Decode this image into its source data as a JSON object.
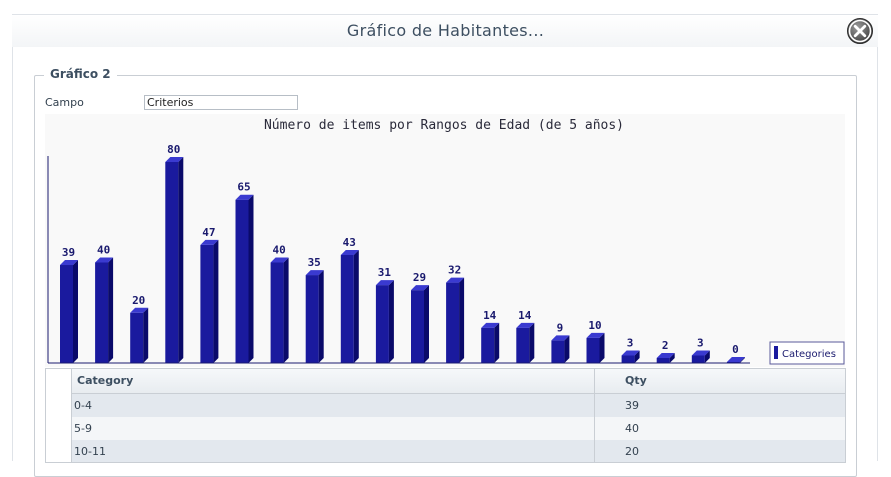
{
  "dialog": {
    "title": "Gráfico de Habitantes...",
    "close_icon": "close-icon"
  },
  "fieldset": {
    "legend": "Gráfico 2"
  },
  "campo": {
    "label": "Campo",
    "value": "Criterios"
  },
  "chart_data": {
    "type": "bar",
    "title": "Número de items por Rangos de Edad (de 5 años)",
    "legend": [
      "Categories"
    ],
    "legend_position": "bottom-right",
    "bar_color": "#1a1a9e",
    "values": [
      39,
      40,
      20,
      80,
      47,
      65,
      40,
      35,
      43,
      31,
      29,
      32,
      14,
      14,
      9,
      10,
      3,
      2,
      3,
      0
    ],
    "ylim": [
      0,
      80
    ],
    "grid": false
  },
  "table": {
    "headers": [
      "Category",
      "Qty"
    ],
    "rows": [
      [
        "0-4",
        "39"
      ],
      [
        "5-9",
        "40"
      ],
      [
        "10-11",
        "20"
      ]
    ]
  }
}
